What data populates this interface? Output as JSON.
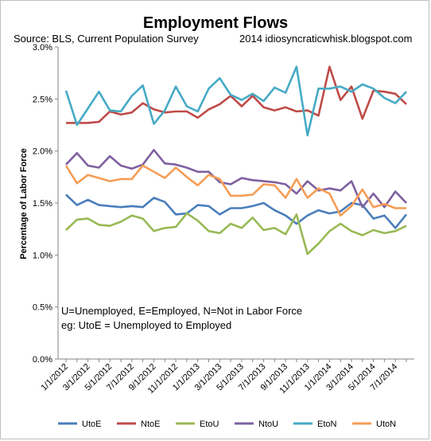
{
  "chart_data": {
    "type": "line",
    "title": "Employment Flows",
    "source_text": "Source: BLS, Current Population Survey",
    "credit_text": "2014  idiosyncraticwhisk.blogspot.com",
    "ylabel": "Percentage of Labor Force",
    "xlabel": "",
    "ylim": [
      0,
      3.0
    ],
    "y_ticks": [
      "0.0%",
      "0.5%",
      "1.0%",
      "1.5%",
      "2.0%",
      "2.5%",
      "3.0%"
    ],
    "y_tick_values": [
      0,
      0.5,
      1.0,
      1.5,
      2.0,
      2.5,
      3.0
    ],
    "x_tick_labels": [
      "1/1/2012",
      "3/1/2012",
      "5/1/2012",
      "7/1/2012",
      "9/1/2012",
      "11/1/2012",
      "1/1/2013",
      "3/1/2013",
      "5/1/2013",
      "7/1/2013",
      "9/1/2013",
      "11/1/2013",
      "1/1/2014",
      "3/1/2014",
      "5/1/2014",
      "7/1/2014"
    ],
    "x": [
      "1/1/2012",
      "2/1/2012",
      "3/1/2012",
      "4/1/2012",
      "5/1/2012",
      "6/1/2012",
      "7/1/2012",
      "8/1/2012",
      "9/1/2012",
      "10/1/2012",
      "11/1/2012",
      "12/1/2012",
      "1/1/2013",
      "2/1/2013",
      "3/1/2013",
      "4/1/2013",
      "5/1/2013",
      "6/1/2013",
      "7/1/2013",
      "8/1/2013",
      "9/1/2013",
      "10/1/2013",
      "11/1/2013",
      "12/1/2013",
      "1/1/2014",
      "2/1/2014",
      "3/1/2014",
      "4/1/2014",
      "5/1/2014",
      "6/1/2014",
      "7/1/2014",
      "8/1/2014"
    ],
    "annotation_lines": [
      "U=Unemployed, E=Employed, N=Not in Labor Force",
      "eg: UtoE = Unemployed to Employed"
    ],
    "grid": false,
    "legend_position": "bottom",
    "series": [
      {
        "name": "UtoE",
        "color": "#4a7ebb",
        "values": [
          1.58,
          1.48,
          1.53,
          1.48,
          1.47,
          1.46,
          1.47,
          1.46,
          1.55,
          1.51,
          1.39,
          1.4,
          1.48,
          1.47,
          1.39,
          1.45,
          1.45,
          1.47,
          1.5,
          1.43,
          1.38,
          1.3,
          1.38,
          1.43,
          1.4,
          1.42,
          1.5,
          1.48,
          1.35,
          1.38,
          1.26,
          1.39
        ]
      },
      {
        "name": "NtoE",
        "color": "#be4b48",
        "values": [
          2.27,
          2.27,
          2.27,
          2.28,
          2.38,
          2.35,
          2.37,
          2.46,
          2.4,
          2.37,
          2.38,
          2.38,
          2.32,
          2.4,
          2.45,
          2.53,
          2.43,
          2.53,
          2.42,
          2.39,
          2.42,
          2.38,
          2.39,
          2.34,
          2.81,
          2.49,
          2.62,
          2.31,
          2.58,
          2.57,
          2.55,
          2.45
        ]
      },
      {
        "name": "EtoU",
        "color": "#98b954",
        "values": [
          1.24,
          1.34,
          1.35,
          1.29,
          1.28,
          1.32,
          1.38,
          1.35,
          1.23,
          1.26,
          1.27,
          1.4,
          1.33,
          1.23,
          1.21,
          1.3,
          1.26,
          1.36,
          1.24,
          1.26,
          1.2,
          1.39,
          1.01,
          1.11,
          1.23,
          1.3,
          1.23,
          1.19,
          1.24,
          1.21,
          1.23,
          1.28
        ]
      },
      {
        "name": "NtoU",
        "color": "#7d60a0",
        "values": [
          1.87,
          1.98,
          1.86,
          1.84,
          1.95,
          1.86,
          1.83,
          1.87,
          2.01,
          1.88,
          1.87,
          1.84,
          1.8,
          1.8,
          1.7,
          1.68,
          1.74,
          1.72,
          1.71,
          1.7,
          1.68,
          1.59,
          1.71,
          1.62,
          1.64,
          1.62,
          1.71,
          1.46,
          1.59,
          1.46,
          1.61,
          1.5
        ]
      },
      {
        "name": "EtoN",
        "color": "#46aac5",
        "values": [
          2.58,
          2.25,
          2.41,
          2.57,
          2.39,
          2.38,
          2.53,
          2.63,
          2.26,
          2.39,
          2.62,
          2.43,
          2.38,
          2.6,
          2.7,
          2.54,
          2.49,
          2.55,
          2.48,
          2.61,
          2.56,
          2.81,
          2.15,
          2.6,
          2.6,
          2.62,
          2.57,
          2.64,
          2.6,
          2.51,
          2.46,
          2.57
        ]
      },
      {
        "name": "UtoN",
        "color": "#f59d56",
        "values": [
          1.86,
          1.69,
          1.77,
          1.74,
          1.71,
          1.73,
          1.73,
          1.86,
          1.8,
          1.74,
          1.84,
          1.75,
          1.67,
          1.77,
          1.73,
          1.57,
          1.57,
          1.58,
          1.68,
          1.67,
          1.55,
          1.73,
          1.55,
          1.64,
          1.59,
          1.38,
          1.47,
          1.63,
          1.46,
          1.49,
          1.45,
          1.45
        ]
      }
    ]
  }
}
